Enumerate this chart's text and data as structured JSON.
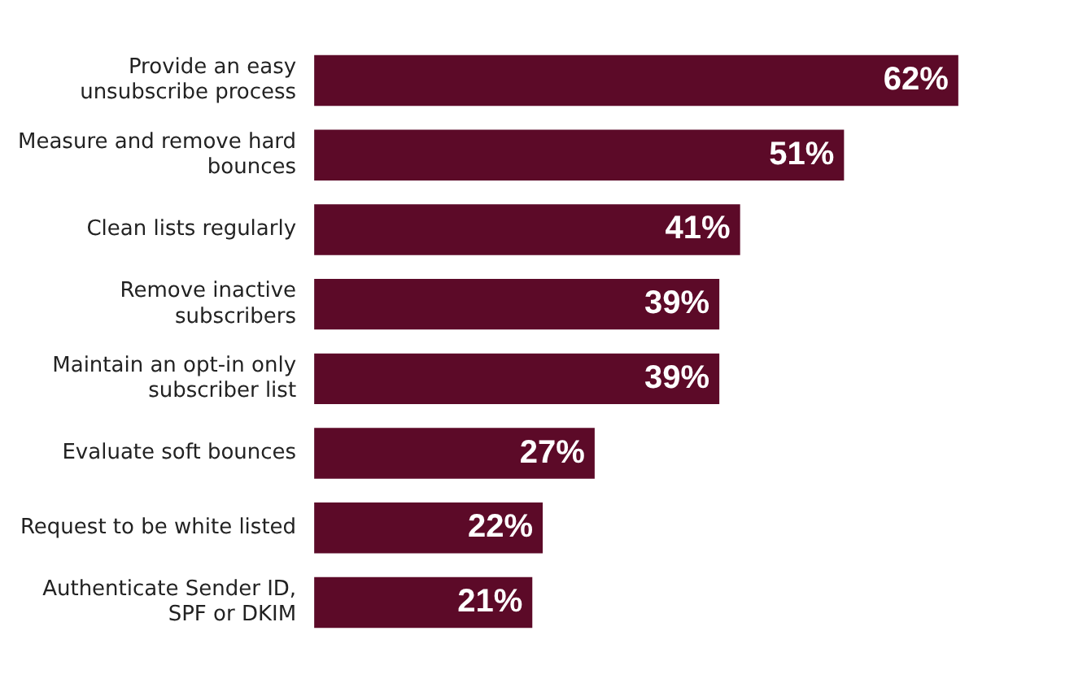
{
  "chart_data": {
    "type": "bar",
    "orientation": "horizontal",
    "categories": [
      "Provide an easy unsubscribe process",
      "Measure and remove hard bounces",
      "Clean lists regularly",
      "Remove inactive subscribers",
      "Maintain an opt-in only subscriber list",
      "Evaluate soft bounces",
      "Request to be white listed",
      "Authenticate Sender ID, SPF or DKIM"
    ],
    "values": [
      62,
      51,
      41,
      39,
      39,
      27,
      22,
      21
    ],
    "value_labels": [
      "62%",
      "51%",
      "41%",
      "39%",
      "39%",
      "27%",
      "22%",
      "21%"
    ],
    "color": "#5c0a28"
  }
}
